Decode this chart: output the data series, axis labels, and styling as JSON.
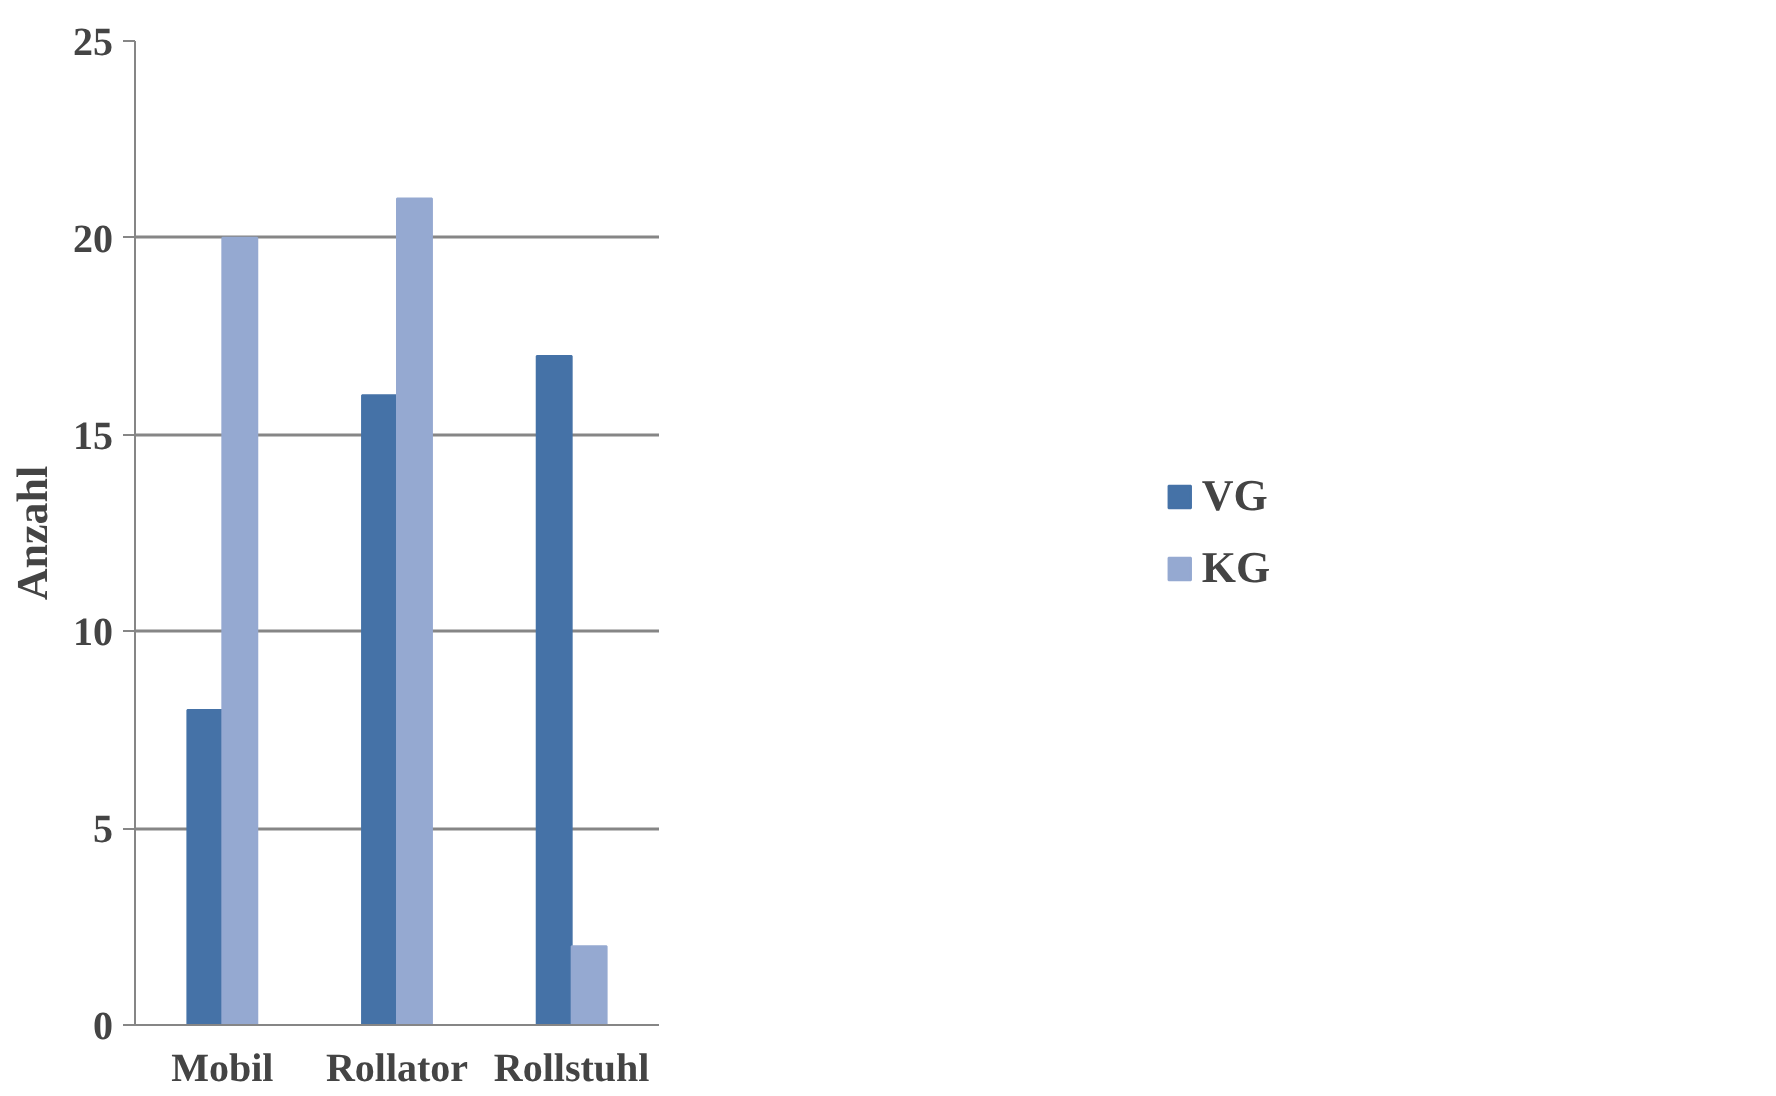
{
  "chart_data": {
    "type": "bar",
    "ylabel": "Anzahl",
    "categories": [
      "Mobil",
      "Rollator",
      "Rollstuhl"
    ],
    "series": [
      {
        "name": "VG",
        "color": "#4572a7",
        "values": [
          8,
          16,
          17
        ]
      },
      {
        "name": "KG",
        "color": "#95a9d1",
        "values": [
          20,
          21,
          2
        ]
      }
    ],
    "ylim": [
      0,
      25
    ],
    "yticks": [
      0,
      5,
      10,
      15,
      20,
      25
    ],
    "grid": "y",
    "legend": "right"
  }
}
